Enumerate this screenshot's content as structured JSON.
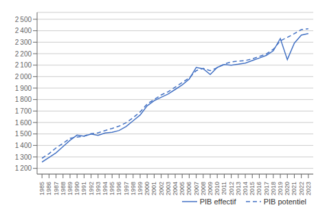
{
  "chart_data": {
    "type": "line",
    "x": [
      1985,
      1986,
      1987,
      1988,
      1989,
      1990,
      1991,
      1992,
      1993,
      1994,
      1995,
      1996,
      1997,
      1998,
      1999,
      2000,
      2001,
      2002,
      2003,
      2004,
      2005,
      2006,
      2007,
      2008,
      2009,
      2010,
      2011,
      2012,
      2013,
      2014,
      2015,
      2016,
      2017,
      2018,
      2019,
      2020,
      2021,
      2022,
      2023
    ],
    "series": [
      {
        "name": "PIB effectif",
        "color": "#4472c4",
        "line_style": "solid",
        "values": [
          1255,
          1295,
          1335,
          1390,
          1445,
          1490,
          1480,
          1500,
          1488,
          1508,
          1515,
          1530,
          1565,
          1615,
          1665,
          1745,
          1790,
          1820,
          1848,
          1888,
          1928,
          1978,
          2080,
          2068,
          2018,
          2080,
          2105,
          2100,
          2108,
          2118,
          2140,
          2162,
          2185,
          2225,
          2332,
          2148,
          2292,
          2362,
          2375
        ]
      },
      {
        "name": "PIB potentiel",
        "color": "#4472c4",
        "line_style": "dashed",
        "values": [
          1288,
          1328,
          1378,
          1418,
          1462,
          1472,
          1482,
          1502,
          1510,
          1530,
          1548,
          1568,
          1598,
          1642,
          1692,
          1762,
          1800,
          1840,
          1868,
          1908,
          1948,
          1988,
          2052,
          2072,
          2052,
          2078,
          2110,
          2128,
          2135,
          2140,
          2155,
          2175,
          2198,
          2238,
          2312,
          2342,
          2375,
          2410,
          2418
        ]
      }
    ],
    "xlim": [
      1984.3,
      2023.7
    ],
    "xticks": [
      1985,
      1986,
      1987,
      1988,
      1989,
      1990,
      1991,
      1992,
      1993,
      1994,
      1995,
      1996,
      1997,
      1998,
      1999,
      2000,
      2001,
      2002,
      2003,
      2004,
      2005,
      2006,
      2007,
      2008,
      2009,
      2010,
      2011,
      2012,
      2013,
      2014,
      2015,
      2016,
      2017,
      2018,
      2019,
      2020,
      2021,
      2022,
      2023
    ],
    "ylim": [
      1150,
      2560
    ],
    "yticks": [
      {
        "value": 1200,
        "label": "1 200"
      },
      {
        "value": 1300,
        "label": "1 300"
      },
      {
        "value": 1400,
        "label": "1 400"
      },
      {
        "value": 1500,
        "label": "1 500"
      },
      {
        "value": 1600,
        "label": "1 600"
      },
      {
        "value": 1700,
        "label": "1 700"
      },
      {
        "value": 1800,
        "label": "1 800"
      },
      {
        "value": 1900,
        "label": "1 900"
      },
      {
        "value": 2000,
        "label": "2 000"
      },
      {
        "value": 2100,
        "label": "2 100"
      },
      {
        "value": 2200,
        "label": "2 200"
      },
      {
        "value": 2300,
        "label": "2 300"
      },
      {
        "value": 2400,
        "label": "2 400"
      },
      {
        "value": 2500,
        "label": "2 500"
      }
    ],
    "grid": "y",
    "legend": "lower right"
  }
}
